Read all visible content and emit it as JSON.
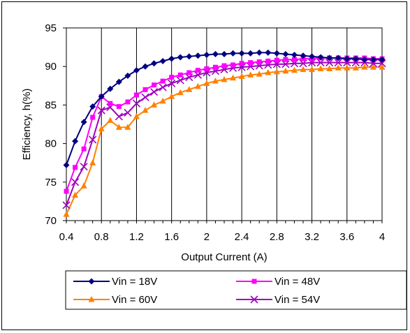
{
  "chart_data": {
    "type": "line",
    "title": "",
    "xlabel": "Output Current (A)",
    "ylabel": "Efficiency, h(%)",
    "xlim": [
      0.4,
      4.0
    ],
    "ylim": [
      70,
      95
    ],
    "xticks": [
      "0.4",
      "0.8",
      "1.2",
      "1.6",
      "2",
      "2.4",
      "2.8",
      "3.2",
      "3.6",
      "4"
    ],
    "yticks": [
      "70",
      "75",
      "80",
      "85",
      "90",
      "95"
    ],
    "grid": "vertical",
    "legend_position": "bottom",
    "x": [
      0.4,
      0.5,
      0.6,
      0.7,
      0.8,
      0.9,
      1.0,
      1.1,
      1.2,
      1.3,
      1.4,
      1.5,
      1.6,
      1.7,
      1.8,
      1.9,
      2.0,
      2.1,
      2.2,
      2.3,
      2.4,
      2.5,
      2.6,
      2.7,
      2.8,
      2.9,
      3.0,
      3.1,
      3.2,
      3.3,
      3.4,
      3.5,
      3.6,
      3.7,
      3.8,
      3.9,
      4.0
    ],
    "series": [
      {
        "name": "Vin = 18V",
        "color": "#000080",
        "marker": "diamond",
        "values": [
          77.2,
          80.3,
          82.8,
          84.8,
          86.1,
          87.1,
          88.0,
          88.8,
          89.5,
          90.0,
          90.4,
          90.7,
          91.0,
          91.2,
          91.3,
          91.4,
          91.5,
          91.6,
          91.6,
          91.7,
          91.7,
          91.7,
          91.8,
          91.8,
          91.7,
          91.6,
          91.5,
          91.4,
          91.3,
          91.2,
          91.1,
          91.1,
          91.0,
          91.0,
          90.9,
          90.9,
          90.9
        ]
      },
      {
        "name": "Vin = 48V",
        "color": "#FF00FF",
        "marker": "square",
        "values": [
          73.8,
          76.9,
          79.3,
          83.4,
          86.1,
          85.2,
          84.8,
          85.4,
          86.3,
          87.0,
          87.6,
          88.1,
          88.6,
          88.9,
          89.2,
          89.5,
          89.7,
          89.9,
          90.1,
          90.2,
          90.4,
          90.5,
          90.6,
          90.7,
          90.8,
          90.9,
          90.9,
          91.0,
          91.0,
          91.1,
          91.1,
          91.1,
          91.1,
          91.1,
          91.1,
          91.0,
          91.0
        ]
      },
      {
        "name": "Vin = 60V",
        "color": "#FF8000",
        "marker": "triangle",
        "values": [
          70.8,
          73.3,
          74.5,
          77.5,
          81.9,
          83.0,
          82.1,
          82.1,
          83.5,
          84.3,
          85.0,
          85.5,
          86.1,
          86.6,
          87.0,
          87.4,
          87.8,
          88.1,
          88.3,
          88.5,
          88.7,
          88.9,
          89.0,
          89.2,
          89.3,
          89.4,
          89.5,
          89.6,
          89.6,
          89.7,
          89.7,
          89.8,
          89.8,
          89.8,
          89.9,
          89.9,
          89.9
        ]
      },
      {
        "name": "Vin = 54V",
        "color": "#A000C0",
        "marker": "x",
        "values": [
          72.0,
          75.0,
          77.0,
          80.5,
          84.3,
          84.7,
          83.5,
          84.0,
          85.2,
          86.0,
          86.7,
          87.3,
          87.8,
          88.2,
          88.6,
          88.9,
          89.2,
          89.4,
          89.6,
          89.8,
          89.9,
          90.0,
          90.1,
          90.2,
          90.3,
          90.3,
          90.4,
          90.4,
          90.5,
          90.5,
          90.5,
          90.5,
          90.5,
          90.5,
          90.5,
          90.4,
          90.4
        ]
      }
    ]
  }
}
